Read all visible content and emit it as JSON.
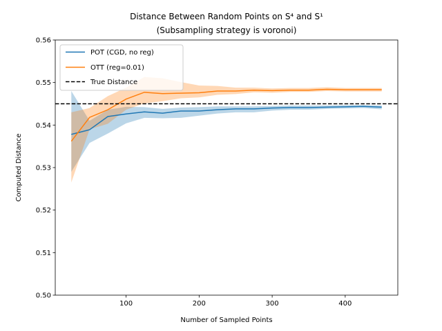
{
  "chart_data": {
    "type": "line",
    "title_line1": "Distance Between Random Points on S⁴ and S¹",
    "title_line2": "(Subsampling strategy is voronoi)",
    "xlabel": "Number of Sampled Points",
    "ylabel": "Computed Distance",
    "xlim": [
      3,
      472
    ],
    "ylim": [
      0.5,
      0.56
    ],
    "xticks": [
      100,
      200,
      300,
      400
    ],
    "yticks": [
      0.5,
      0.51,
      0.52,
      0.53,
      0.54,
      0.55,
      0.56
    ],
    "ytick_labels": [
      "0.50",
      "0.51",
      "0.52",
      "0.53",
      "0.54",
      "0.55",
      "0.56"
    ],
    "grid": false,
    "legend_position": "upper-left",
    "x": [
      25,
      50,
      75,
      100,
      125,
      150,
      175,
      200,
      225,
      250,
      275,
      300,
      325,
      350,
      375,
      400,
      425,
      450
    ],
    "series": [
      {
        "name": "POT (CGD, no reg)",
        "color": "#1f77b4",
        "values": [
          0.5378,
          0.5389,
          0.542,
          0.5426,
          0.5431,
          0.5428,
          0.5433,
          0.5433,
          0.5436,
          0.5438,
          0.5438,
          0.544,
          0.5441,
          0.5441,
          0.5442,
          0.5443,
          0.5444,
          0.5442
        ],
        "lower": [
          0.529,
          0.5358,
          0.538,
          0.5404,
          0.5417,
          0.5416,
          0.5417,
          0.5422,
          0.5427,
          0.543,
          0.543,
          0.5434,
          0.5436,
          0.5436,
          0.5438,
          0.5439,
          0.544,
          0.5437
        ],
        "upper": [
          0.548,
          0.541,
          0.5436,
          0.5443,
          0.5442,
          0.5438,
          0.5441,
          0.5442,
          0.5444,
          0.5444,
          0.5444,
          0.5445,
          0.5446,
          0.5446,
          0.5446,
          0.5447,
          0.5447,
          0.5446
        ]
      },
      {
        "name": "OTT (reg=0.01)",
        "color": "#ff7f0e",
        "values": [
          0.5362,
          0.5418,
          0.5436,
          0.5461,
          0.5477,
          0.5474,
          0.5475,
          0.5476,
          0.548,
          0.548,
          0.5482,
          0.5481,
          0.5482,
          0.5482,
          0.5484,
          0.5483,
          0.5483,
          0.5483
        ],
        "lower": [
          0.5265,
          0.539,
          0.5403,
          0.5436,
          0.5451,
          0.5456,
          0.5463,
          0.5465,
          0.5471,
          0.5473,
          0.5477,
          0.5476,
          0.5478,
          0.5478,
          0.548,
          0.5479,
          0.5479,
          0.5479
        ],
        "upper": [
          0.543,
          0.544,
          0.5468,
          0.5488,
          0.5513,
          0.551,
          0.5501,
          0.5493,
          0.5492,
          0.5488,
          0.5488,
          0.5486,
          0.5487,
          0.5487,
          0.5489,
          0.5487,
          0.5487,
          0.5487
        ]
      }
    ],
    "reference_line": {
      "name": "True Distance",
      "y": 0.545,
      "color": "#000000",
      "style": "dashed"
    }
  }
}
